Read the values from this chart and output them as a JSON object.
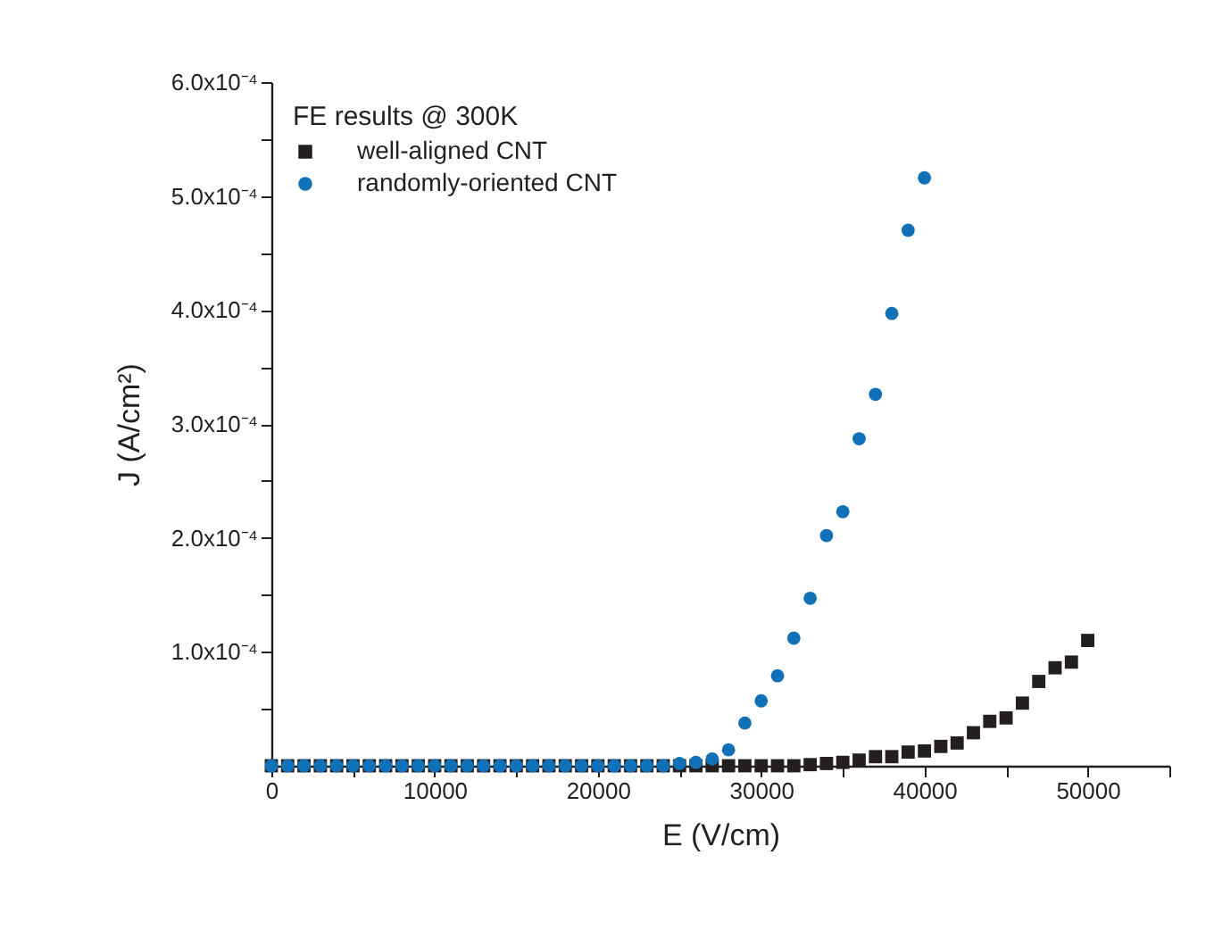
{
  "chart_data": {
    "type": "scatter",
    "xlabel": "E (V/cm)",
    "ylabel": "J (A/cm²)",
    "legend_title": "FE results @ 300K",
    "legend": "top left",
    "grid": false,
    "xlim": [
      0,
      55000
    ],
    "ylim": [
      0,
      0.0006
    ],
    "xticks": [
      0,
      {
        "value": 5000,
        "label": null
      },
      10000,
      {
        "value": 15000,
        "label": null
      },
      20000,
      {
        "value": 25000,
        "label": null
      },
      30000,
      {
        "value": 35000,
        "label": null
      },
      40000,
      {
        "value": 45000,
        "label": null
      },
      50000,
      {
        "value": 55000,
        "label": null
      }
    ],
    "yticks": [
      {
        "value": 5e-05,
        "label": null
      },
      {
        "value": 0.0001,
        "label": "1.0x10⁻⁴"
      },
      {
        "value": 0.00015,
        "label": null
      },
      {
        "value": 0.0002,
        "label": "2.0x10⁻⁴"
      },
      {
        "value": 0.00025,
        "label": null
      },
      {
        "value": 0.0003,
        "label": "3.0x10⁻⁴"
      },
      {
        "value": 0.00035,
        "label": null
      },
      {
        "value": 0.0004,
        "label": "4.0x10⁻⁴"
      },
      {
        "value": 0.00045,
        "label": null
      },
      {
        "value": 0.0005,
        "label": "5.0x10⁻⁴"
      },
      {
        "value": 0.00055,
        "label": null
      },
      {
        "value": 0.0006,
        "label": "6.0x10⁻⁴"
      }
    ],
    "x": [
      0,
      1000,
      2000,
      3000,
      4000,
      5000,
      6000,
      7000,
      8000,
      9000,
      10000,
      11000,
      12000,
      13000,
      14000,
      15000,
      16000,
      17000,
      18000,
      19000,
      20000,
      21000,
      22000,
      23000,
      24000,
      25000,
      26000,
      27000,
      28000,
      29000,
      30000,
      31000,
      32000,
      33000,
      34000,
      35000,
      36000,
      37000,
      38000,
      39000,
      40000,
      41000,
      42000,
      43000,
      44000,
      45000,
      46000,
      47000,
      48000,
      49000,
      50000
    ],
    "series": [
      {
        "name": "well-aligned CNT",
        "color": "#231f20",
        "marker": "square",
        "values": [
          0,
          0,
          0,
          0,
          0,
          0,
          0,
          0,
          0,
          0,
          0,
          0,
          0,
          0,
          0,
          0,
          0,
          0,
          0,
          0,
          0,
          0,
          0,
          0,
          0,
          0,
          0,
          0,
          0,
          0,
          0,
          0,
          0,
          1e-06,
          2e-06,
          3e-06,
          5e-06,
          8e-06,
          8e-06,
          1.2e-05,
          1.3e-05,
          1.7e-05,
          2e-05,
          2.9e-05,
          3.9e-05,
          4.2e-05,
          5.5e-05,
          7.4e-05,
          8.6e-05,
          9.1e-05,
          0.00011
        ]
      },
      {
        "name": "randomly-oriented CNT",
        "color": "#1070b8",
        "marker": "circle",
        "x": [
          0,
          1000,
          2000,
          3000,
          4000,
          5000,
          6000,
          7000,
          8000,
          9000,
          10000,
          11000,
          12000,
          13000,
          14000,
          15000,
          16000,
          17000,
          18000,
          19000,
          20000,
          21000,
          22000,
          23000,
          24000,
          25000,
          26000,
          27000,
          28000,
          29000,
          30000,
          31000,
          32000,
          33000,
          34000,
          35000,
          36000,
          37000,
          38000,
          39000,
          40000
        ],
        "values": [
          0,
          0,
          0,
          0,
          0,
          0,
          0,
          0,
          0,
          0,
          0,
          0,
          0,
          0,
          0,
          0,
          0,
          0,
          0,
          0,
          0,
          0,
          0,
          0,
          0,
          2e-06,
          3e-06,
          6e-06,
          1.4e-05,
          3.75e-05,
          5.7e-05,
          7.9e-05,
          0.000112,
          0.000147,
          0.000202,
          0.000223,
          0.000287,
          0.000326,
          0.000397,
          0.00047,
          0.000516
        ]
      }
    ]
  }
}
